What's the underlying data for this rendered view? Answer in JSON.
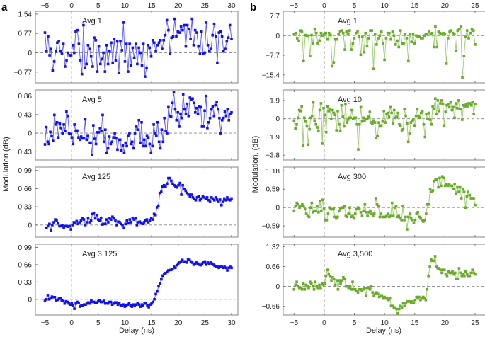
{
  "figure": {
    "xlabel": "Delay (ns)"
  },
  "chart_data": [
    {
      "panel": "a",
      "type": "line",
      "title": "Avg 1",
      "color": "#1010ee",
      "ylabel": "Modulation (dB)",
      "xlim": [
        -6.8,
        31.2
      ],
      "ylim": [
        -1.2,
        1.65
      ],
      "xticks": [
        -5,
        0,
        5,
        10,
        15,
        20,
        25,
        30
      ],
      "yticks": [
        -0.77,
        0,
        0.77,
        1.54
      ],
      "ytick_labels": [
        "-0.77",
        "0",
        "0.77",
        "1.54"
      ],
      "x_start": -5,
      "x_step": 0.5,
      "values": [
        0.8,
        0.05,
        0.65,
        -0.1,
        0.15,
        -0.7,
        -0.35,
        0.05,
        0.4,
        0.45,
        0.05,
        -0.05,
        0.35,
        -0.55,
        -0.3,
        0.0,
        -0.1,
        -0.1,
        0.3,
        0.0,
        0.85,
        0.9,
        0.35,
        -0.3,
        -0.85,
        1.1,
        -0.6,
        -0.45,
        0.3,
        0.15,
        -0.15,
        -0.55,
        0.6,
        0.5,
        -0.75,
        0.25,
        -0.45,
        -0.25,
        0.0,
        -0.75,
        0.3,
        -0.45,
        0.05,
        0.4,
        -0.4,
        0.55,
        -0.3,
        0.45,
        -0.8,
        0.45,
        0.1,
        1.2,
        -0.35,
        0.35,
        -0.75,
        0.35,
        -0.5,
        0.2,
        -0.2,
        0.35,
        -0.45,
        0.2,
        0.0,
        -0.5,
        0.35,
        -0.95,
        -0.6,
        0.3,
        0.2,
        -0.15,
        0.5,
        0.4
      ],
      "values2_start": 15.5,
      "values2": [
        0.05,
        0.3,
        0.4,
        0.5,
        0.15,
        0.5,
        0.7,
        1.3,
        0.9,
        -0.05,
        0.6,
        0.65,
        1.35,
        0.65,
        0.85,
        0.8,
        1.05,
        0.9,
        1.1,
        0.25,
        1.1,
        0.95,
        0.55,
        1.35,
        0.3,
        0.9,
        0.8,
        0.25,
        -0.05,
        0.85,
        -0.05,
        0.0,
        1.2,
        0.3,
        0.05,
        0.15,
        0.7,
        1.15,
        0.65,
        -0.4,
        0.8,
        0.85,
        0.65,
        0.05,
        0.15,
        0.45,
        0.6,
        1.1,
        0.55
      ]
    },
    {
      "panel": "a",
      "type": "line",
      "title": "Avg 5",
      "color": "#1010ee",
      "xlim": [
        -6.8,
        31.2
      ],
      "ylim": [
        -0.62,
        1.0
      ],
      "xticks": [
        -5,
        0,
        5,
        10,
        15,
        20,
        25,
        30
      ],
      "yticks": [
        -0.43,
        0,
        0.43,
        0.86
      ],
      "ytick_labels": [
        "-0.43",
        "0",
        "0.43",
        "0.86"
      ],
      "x_start": -5,
      "x_step": 0.25,
      "values": [
        -0.26,
        0.14,
        -0.2,
        -0.25,
        0.03,
        -0.07,
        -0.18,
        0.42,
        0.2,
        0.25,
        -0.1,
        0.22,
        0.12,
        0.0,
        0.2,
        0.05,
        0.5,
        0.4,
        0.0,
        -0.02,
        -0.1,
        -0.25,
        0.2,
        0.05,
        0.06,
        -0.1,
        -0.15,
        -0.08,
        -0.12,
        -0.12,
        0.32,
        -0.15,
        -0.05,
        -0.22,
        -0.22,
        -0.5,
        0.18,
        -0.13,
        -0.25,
        0.02,
        0.02,
        0.12,
        0.05,
        0.42,
        -0.2,
        0.08,
        -0.45,
        -0.35,
        -0.08,
        -0.25,
        -0.2,
        -0.1,
        0.0,
        -0.12,
        -0.38,
        -0.15,
        -0.15,
        -0.4,
        -0.28,
        -0.45,
        -0.22,
        -0.3,
        -0.05,
        0.0,
        -0.25,
        -0.2,
        -0.35,
        0.0,
        0.15,
        0.08,
        0.3,
        -0.22,
        0.25,
        -0.3,
        -0.15,
        -0.3,
        -0.05,
        -0.1,
        -0.25,
        -0.45,
        -0.3,
        0.2,
        0.0,
        -0.05,
        0.25,
        -0.2,
        -0.35,
        0.08,
        -0.2,
        0.35,
        0.05,
        0.0,
        0.6,
        0.4,
        0.38,
        0.7,
        0.95,
        0.55,
        0.3,
        0.48,
        0.15,
        0.45,
        0.35,
        0.9,
        0.55,
        0.45,
        0.68,
        0.4,
        0.82,
        0.78,
        0.8,
        0.7,
        0.48,
        0.58,
        0.45,
        0.62,
        0.6,
        0.15,
        0.15,
        0.52,
        0.86,
        0.12,
        0.25,
        0.35,
        0.55,
        0.62,
        0.4,
        0.65,
        0.72,
        0.55,
        0.35,
        0.0,
        0.3,
        0.35,
        0.5,
        0.4,
        0.55,
        0.3,
        0.45,
        0.48
      ],
      "x_end_hint": 30
    },
    {
      "panel": "a",
      "type": "scatter-line",
      "title": "Avg 125",
      "color": "#1010ee",
      "xlim": [
        -6.8,
        31.2
      ],
      "ylim": [
        -0.22,
        1.05
      ],
      "xticks": [
        -5,
        0,
        5,
        10,
        15,
        20,
        25,
        30
      ],
      "yticks": [
        0,
        0.33,
        0.66,
        0.99
      ],
      "ytick_labels": [
        "0",
        "0.33",
        "0.66",
        "0.99"
      ],
      "x_start": -4.7,
      "x_step": 0.25,
      "values": [
        -0.05,
        -0.02,
        0.02,
        -0.1,
        0.0,
        0.05,
        0.1,
        0.08,
        0.03,
        -0.02,
        -0.02,
        -0.01,
        -0.05,
        -0.02,
        -0.02,
        -0.03,
        -0.02,
        -0.08,
        0.0,
        0.05,
        0.04,
        0.07,
        0.02,
        0.05,
        0.08,
        0.12,
        0.1,
        0.0,
        0.05,
        0.12,
        0.05,
        0.08,
        0.2,
        0.22,
        0.12,
        0.18,
        0.1,
        0.08,
        0.13,
        0.01,
        0.02,
        0.02,
        0.1,
        0.05,
        0.12,
        0.1,
        0.15,
        0.12,
        0.08,
        0.0,
        0.06,
        0.05,
        0.02,
        0.0,
        -0.05,
        0.02,
        0.08,
        0.03,
        0.1,
        0.05,
        0.12,
        0.1,
        0.12,
        0.0,
        0.05,
        0.06,
        0.04,
        0.02,
        0.05,
        0.08,
        0.1,
        0.05,
        0.08,
        0.12,
        0.1,
        0.2,
        0.18,
        0.32,
        0.35,
        0.58,
        0.6,
        0.7,
        0.72,
        0.7,
        0.75,
        0.85,
        0.85,
        0.8,
        0.75,
        0.72,
        0.7,
        0.68,
        0.72,
        0.76,
        0.55,
        0.72,
        0.65,
        0.62,
        0.58,
        0.55,
        0.52,
        0.55,
        0.5,
        0.48,
        0.45,
        0.5,
        0.52,
        0.45,
        0.48,
        0.52,
        0.5,
        0.48,
        0.5,
        0.45,
        0.42,
        0.5,
        0.48,
        0.45,
        0.5,
        0.46,
        0.42,
        0.46,
        0.36,
        0.42,
        0.48,
        0.45,
        0.5,
        0.46,
        0.45,
        0.48
      ],
      "x_end_hint": 30
    },
    {
      "panel": "a",
      "type": "scatter-line",
      "title": "Avg 3,125",
      "color": "#1010ee",
      "xlim": [
        -6.8,
        31.2
      ],
      "ylim": [
        -0.3,
        1.05
      ],
      "xticks": [
        -5,
        0,
        5,
        10,
        15,
        20,
        25,
        30
      ],
      "yticks": [
        0,
        0.33,
        0.66,
        0.99
      ],
      "ytick_labels": [
        "0",
        "0.33",
        "0.66",
        "0.99"
      ],
      "x_start": -5,
      "x_step": 0.25,
      "values": [
        -0.03,
        0.0,
        0.08,
        0.0,
        0.02,
        0.05,
        0.04,
        0.04,
        -0.02,
        -0.01,
        0.01,
        0.02,
        -0.02,
        -0.03,
        -0.08,
        -0.04,
        -0.05,
        -0.08,
        -0.1,
        -0.08,
        -0.12,
        -0.18,
        -0.08,
        -0.05,
        -0.07,
        -0.14,
        -0.12,
        -0.12,
        -0.1,
        -0.1,
        -0.08,
        -0.06,
        -0.08,
        -0.02,
        -0.05,
        -0.05,
        -0.07,
        -0.06,
        -0.04,
        -0.02,
        -0.05,
        -0.05,
        -0.03,
        -0.08,
        -0.07,
        -0.08,
        -0.05,
        -0.05,
        -0.1,
        -0.08,
        -0.06,
        -0.06,
        -0.1,
        -0.08,
        -0.12,
        -0.12,
        -0.1,
        -0.14,
        -0.12,
        -0.1,
        -0.08,
        -0.12,
        -0.14,
        -0.1,
        -0.12,
        -0.1,
        -0.08,
        -0.1,
        -0.14,
        -0.1,
        -0.12,
        -0.08,
        -0.08,
        -0.12,
        -0.15,
        -0.1,
        -0.08,
        -0.05,
        0.0,
        0.1,
        0.15,
        0.25,
        0.3,
        0.38,
        0.45,
        0.48,
        0.5,
        0.52,
        0.55,
        0.56,
        0.56,
        0.58,
        0.62,
        0.6,
        0.65,
        0.68,
        0.7,
        0.72,
        0.75,
        0.72,
        0.72,
        0.7,
        0.76,
        0.75,
        0.72,
        0.7,
        0.66,
        0.68,
        0.7,
        0.68,
        0.66,
        0.65,
        0.68,
        0.7,
        0.72,
        0.66,
        0.7,
        0.68,
        0.7,
        0.68,
        0.66,
        0.64,
        0.62,
        0.62,
        0.6,
        0.62,
        0.62,
        0.6,
        0.62,
        0.6,
        0.55,
        0.6,
        0.62,
        0.6
      ],
      "x_end_hint": 30
    },
    {
      "panel": "b",
      "type": "line",
      "title": "Avg 1",
      "color": "#6aaa2a",
      "ylabel": "Modulation, (dB)",
      "xlim": [
        -6.8,
        27
      ],
      "ylim": [
        -18.5,
        9.5
      ],
      "xticks": [
        -5,
        0,
        5,
        10,
        15,
        20,
        25
      ],
      "yticks": [
        -15.4,
        -7.7,
        0,
        7.7
      ],
      "ytick_labels": [
        "-15.4",
        "-7.7",
        "0",
        "7.7"
      ],
      "x_start": -5,
      "x_step": 0.25,
      "values": [
        0.5,
        1.0,
        -1.0,
        -2.0,
        2.0,
        1.5,
        -10.0,
        0.2,
        0.0,
        0.0,
        -8.0,
        0.2,
        -3.0,
        2.5,
        1.0,
        -3.0,
        -2.0,
        1.0,
        0.0,
        0.5,
        1.0,
        -1.5,
        1.0,
        0.2,
        -12.0,
        -10.5,
        -1.5,
        -1.5,
        0.5,
        1.5,
        2.0,
        1.0,
        -5.5,
        1.5,
        0.5,
        2.0,
        -5.5,
        -3.0,
        -1.0,
        1.0,
        1.5,
        -0.5,
        -7.5,
        -0.5,
        -6.5,
        1.0,
        -4.0,
        -1.0,
        2.0,
        2.0,
        -13.0,
        0.5,
        -3.5,
        -1.0,
        0.0,
        1.5,
        -3.0,
        -9.5,
        -1.0,
        1.0,
        1.0,
        -1.5,
        1.5,
        0.0,
        -3.5,
        -2.0,
        -4.5,
        2.0,
        -3.0,
        -3.0,
        0.5,
        -1.0,
        -10.0,
        0.5,
        -2.5,
        0.5,
        -3.0,
        0.0,
        -0.5,
        -0.5,
        -1.0,
        -1.0,
        0.0,
        0.5,
        0.5,
        1.5,
        0.5,
        1.0,
        -4.5,
        3.5,
        -4.5,
        1.5,
        1.0,
        0.5,
        1.0,
        0.5,
        -11.0,
        -1.0,
        1.5,
        2.0,
        1.0,
        0.5,
        -6.0,
        2.0,
        2.5,
        3.5,
        -16.5,
        -8.0,
        -0.5,
        2.0,
        -1.0,
        1.0,
        2.5,
        2.0,
        -3.5
      ]
    },
    {
      "panel": "b",
      "type": "line",
      "title": "Avg 10",
      "color": "#6aaa2a",
      "xlim": [
        -6.8,
        27
      ],
      "ylim": [
        -4.3,
        3.0
      ],
      "xticks": [
        -5,
        0,
        5,
        10,
        15,
        20,
        25
      ],
      "yticks": [
        -3.8,
        -1.9,
        0,
        1.9
      ],
      "ytick_labels": [
        "-3.8",
        "-1.9",
        "0",
        "1.9"
      ],
      "x_start": -5,
      "x_step": 0.25,
      "values": [
        -0.2,
        -1.0,
        -0.6,
        0.1,
        0.9,
        0.8,
        1.3,
        -2.8,
        0.1,
        -0.3,
        -0.8,
        -2.7,
        -1.1,
        0.1,
        0.3,
        1.7,
        -0.2,
        -0.6,
        -0.9,
        -1.3,
        0.9,
        1.6,
        -2.6,
        1.1,
        0.4,
        -1.4,
        1.3,
        0.8,
        1.0,
        0.0,
        0.9,
        0.6,
        0.4,
        -1.2,
        0.8,
        -0.6,
        -1.3,
        1.4,
        0.2,
        -0.8,
        1.5,
        -0.4,
        -0.1,
        0.1,
        0.1,
        0.9,
        0.0,
        0.1,
        0.1,
        -0.6,
        -3.2,
        -0.6,
        1.2,
        -0.3,
        0.1,
        -0.2,
        0.0,
        0.0,
        0.2,
        0.7,
        -0.4,
        -0.5,
        -0.2,
        -0.4,
        -2.0,
        -1.8,
        -0.4,
        -0.8,
        -0.7,
        -0.3,
        0.8,
        -0.4,
        0.5,
        0.6,
        0.2,
        1.2,
        0.6,
        -0.5,
        0.9,
        0.1,
        0.2,
        0.6,
        -0.6,
        -0.7,
        -1.2,
        -1.1,
        1.0,
        0.3,
        -0.5,
        -2.4,
        -1.5,
        -0.4,
        -0.2,
        -0.1,
        -0.7,
        0.3,
        1.0,
        0.3,
        0.1,
        0.6,
        0.8,
        -0.6,
        -1.9,
        0.5,
        0.0,
        0.6,
        -0.1,
        -0.6,
        1.3,
        1.0,
        2.1,
        0.5,
        1.9,
        0.8,
        1.6,
        1.9,
        1.5,
        -0.7,
        0.7,
        1.4,
        1.5,
        1.2,
        1.7,
        0.9,
        1.2,
        0.1,
        1.6,
        1.1,
        1.9,
        1.0,
        1.0,
        -0.1,
        1.4,
        1.3,
        1.5,
        1.3,
        1.6,
        1.6,
        1.4,
        1.7,
        0.5,
        1.5
      ]
    },
    {
      "panel": "b",
      "type": "line",
      "title": "Avg 300",
      "color": "#6aaa2a",
      "xlim": [
        -6.8,
        27
      ],
      "ylim": [
        -0.95,
        1.3
      ],
      "xticks": [
        -5,
        0,
        5,
        10,
        15,
        20,
        25
      ],
      "yticks": [
        -0.59,
        0,
        0.59,
        1.18
      ],
      "ytick_labels": [
        "-0.59",
        "0",
        "0.59",
        "1.18"
      ],
      "x_start": -5,
      "x_step": 0.25,
      "values": [
        -0.1,
        0.05,
        0.15,
        0.1,
        0.0,
        0.05,
        0.1,
        0.05,
        -0.05,
        -0.2,
        -0.25,
        -0.3,
        0.0,
        0.15,
        -0.15,
        -0.1,
        -0.1,
        0.05,
        -0.15,
        0.2,
        -0.1,
        0.25,
        -0.05,
        -0.4,
        -0.4,
        -0.2,
        0.0,
        -0.05,
        -0.05,
        -0.05,
        -0.3,
        -0.35,
        -0.3,
        -0.1,
        -0.05,
        0.0,
        0.0,
        0.05,
        -0.25,
        -0.3,
        -0.2,
        0.0,
        -0.3,
        -0.25,
        -0.35,
        -0.2,
        -0.05,
        0.0,
        -0.05,
        -0.15,
        -0.25,
        -0.1,
        0.1,
        -0.15,
        -0.25,
        -0.15,
        -0.1,
        -0.2,
        -0.25,
        -0.2,
        0.3,
        0.1,
        0.05,
        -0.3,
        -0.2,
        -0.3,
        -0.3,
        -0.3,
        -0.25,
        -0.2,
        -0.3,
        -0.25,
        0.15,
        -0.25,
        0.0,
        0.05,
        -0.3,
        -0.25,
        -0.35,
        -0.4,
        0.05,
        -0.4,
        -0.3,
        -0.7,
        -0.3,
        -0.2,
        -0.35,
        -0.4,
        -0.5,
        -0.4,
        -0.2,
        -0.15,
        -0.3,
        -0.35,
        -0.4,
        -0.45,
        -0.4,
        -0.2,
        0.1,
        0.1,
        0.6,
        0.5,
        0.55,
        0.85,
        0.9,
        0.9,
        0.65,
        0.95,
        0.7,
        1.0,
        0.95,
        0.7,
        0.75,
        0.7,
        0.75,
        0.7,
        0.7,
        0.6,
        0.75,
        0.45,
        0.65,
        0.5,
        0.65,
        0.3,
        0.6,
        0.5,
        0.0,
        0.35,
        0.5,
        0.4,
        0.3,
        0.3,
        0.3,
        0.08
      ]
    },
    {
      "panel": "b",
      "type": "line",
      "title": "Avg 3,500",
      "color": "#6aaa2a",
      "xlim": [
        -6.8,
        27
      ],
      "ylim": [
        -0.95,
        1.4
      ],
      "xticks": [
        -5,
        0,
        5,
        10,
        15,
        20,
        25
      ],
      "yticks": [
        -0.66,
        0,
        0.66,
        1.32
      ],
      "ytick_labels": [
        "-0.66",
        "0",
        "0.66",
        "1.32"
      ],
      "x_start": -5,
      "x_step": 0.25,
      "values": [
        -0.1,
        0.05,
        0.15,
        0.0,
        -0.05,
        -0.05,
        -0.1,
        0.1,
        -0.1,
        0.05,
        0.0,
        -0.05,
        0.15,
        0.1,
        0.0,
        -0.1,
        0.15,
        0.0,
        -0.05,
        0.05,
        -0.05,
        0.1,
        0.05,
        0.1,
        0.35,
        0.55,
        0.4,
        0.35,
        0.2,
        0.3,
        0.25,
        0.05,
        0.2,
        -0.1,
        0.2,
        0.1,
        0.2,
        0.3,
        0.25,
        0.0,
        0.0,
        -0.05,
        0.0,
        -0.1,
        0.15,
        -0.1,
        -0.1,
        -0.15,
        -0.2,
        -0.1,
        -0.1,
        -0.15,
        -0.1,
        -0.05,
        -0.3,
        -0.05,
        -0.05,
        -0.1,
        0.0,
        -0.2,
        -0.3,
        -0.25,
        -0.2,
        -0.25,
        -0.35,
        -0.3,
        -0.3,
        -0.4,
        -0.35,
        -0.4,
        -0.4,
        -0.45,
        -0.4,
        -0.65,
        -0.65,
        -0.7,
        -0.7,
        -0.75,
        -0.9,
        -0.75,
        -0.65,
        -0.7,
        -0.55,
        -0.65,
        -0.55,
        -0.5,
        -0.5,
        -0.5,
        -0.55,
        -0.5,
        -0.55,
        -0.45,
        -0.35,
        -0.4,
        -0.35,
        -0.45,
        -0.4,
        -0.35,
        -0.4,
        -0.45,
        -0.1,
        0.35,
        0.65,
        0.9,
        0.85,
        0.85,
        1.0,
        0.65,
        0.6,
        0.6,
        0.55,
        0.45,
        0.55,
        0.55,
        0.4,
        0.35,
        0.5,
        0.45,
        0.45,
        0.5,
        0.4,
        0.45,
        0.25,
        0.25,
        0.6,
        0.45,
        0.35,
        0.4,
        0.35,
        0.5,
        0.4,
        0.35,
        0.35,
        0.45,
        0.55,
        0.45,
        0.4
      ]
    }
  ]
}
